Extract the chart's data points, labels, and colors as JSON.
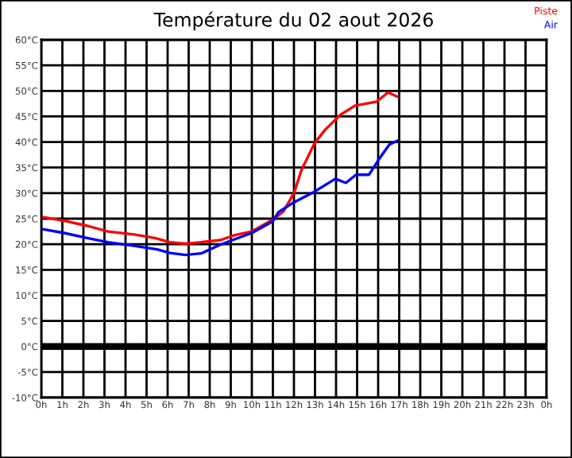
{
  "chart_data": {
    "type": "line",
    "title": "Température du 02 aout 2026",
    "xlim": [
      "2026-08-02T00:00",
      "2026-08-03T00:00"
    ],
    "ylim": [
      -10,
      60
    ],
    "xticks": [
      {
        "value": "2026-08-02T00:00",
        "label": "0h"
      },
      {
        "value": "2026-08-02T01:00",
        "label": "1h"
      },
      {
        "value": "2026-08-02T02:00",
        "label": "2h"
      },
      {
        "value": "2026-08-02T03:00",
        "label": "3h"
      },
      {
        "value": "2026-08-02T04:00",
        "label": "4h"
      },
      {
        "value": "2026-08-02T05:00",
        "label": "5h"
      },
      {
        "value": "2026-08-02T06:00",
        "label": "6h"
      },
      {
        "value": "2026-08-02T07:00",
        "label": "7h"
      },
      {
        "value": "2026-08-02T08:00",
        "label": "8h"
      },
      {
        "value": "2026-08-02T09:00",
        "label": "9h"
      },
      {
        "value": "2026-08-02T10:00",
        "label": "10h"
      },
      {
        "value": "2026-08-02T11:00",
        "label": "11h"
      },
      {
        "value": "2026-08-02T12:00",
        "label": "12h"
      },
      {
        "value": "2026-08-02T13:00",
        "label": "13h"
      },
      {
        "value": "2026-08-02T14:00",
        "label": "14h"
      },
      {
        "value": "2026-08-02T15:00",
        "label": "15h"
      },
      {
        "value": "2026-08-02T16:00",
        "label": "16h"
      },
      {
        "value": "2026-08-02T17:00",
        "label": "17h"
      },
      {
        "value": "2026-08-02T18:00",
        "label": "18h"
      },
      {
        "value": "2026-08-02T19:00",
        "label": "19h"
      },
      {
        "value": "2026-08-02T20:00",
        "label": "20h"
      },
      {
        "value": "2026-08-02T21:00",
        "label": "21h"
      },
      {
        "value": "2026-08-02T22:00",
        "label": "22h"
      },
      {
        "value": "2026-08-02T23:00",
        "label": "23h"
      },
      {
        "value": "2026-08-03T00:00",
        "label": "0h"
      }
    ],
    "yticks": [
      {
        "value": -10,
        "label": "-10°C"
      },
      {
        "value": -5,
        "label": "-5°C"
      },
      {
        "value": 0,
        "label": "0°C"
      },
      {
        "value": 5,
        "label": "5°C"
      },
      {
        "value": 10,
        "label": "10°C"
      },
      {
        "value": 15,
        "label": "15°C"
      },
      {
        "value": 20,
        "label": "20°C"
      },
      {
        "value": 25,
        "label": "25°C"
      },
      {
        "value": 30,
        "label": "30°C"
      },
      {
        "value": 35,
        "label": "35°C"
      },
      {
        "value": 40,
        "label": "40°C"
      },
      {
        "value": 45,
        "label": "45°C"
      },
      {
        "value": 50,
        "label": "50°C"
      },
      {
        "value": 55,
        "label": "55°C"
      },
      {
        "value": 60,
        "label": "60°C"
      }
    ],
    "grid": true,
    "legend": "top right",
    "marker": "none",
    "line_style": "solid",
    "ref_lines": [
      {
        "axis": "y",
        "value": 0,
        "label": null,
        "color": "#000000"
      }
    ],
    "series": [
      {
        "name": "Piste",
        "color": "#ff0000",
        "x": [
          "2026-08-02T00:06",
          "2026-08-02T01:05",
          "2026-08-02T02:11",
          "2026-08-02T03:10",
          "2026-08-02T04:24",
          "2026-08-02T05:24",
          "2026-08-02T06:06",
          "2026-08-02T06:51",
          "2026-08-02T07:36",
          "2026-08-02T08:30",
          "2026-08-02T09:12",
          "2026-08-02T10:00",
          "2026-08-02T11:00",
          "2026-08-02T11:30",
          "2026-08-02T12:00",
          "2026-08-02T12:22",
          "2026-08-02T12:59",
          "2026-08-02T13:29",
          "2026-08-02T14:12",
          "2026-08-02T14:54",
          "2026-08-02T15:56",
          "2026-08-02T16:28",
          "2026-08-02T16:54"
        ],
        "values": [
          25.3,
          24.6,
          23.6,
          22.5,
          21.9,
          21.2,
          20.4,
          20.1,
          20.4,
          20.8,
          21.8,
          22.5,
          24.8,
          26.4,
          30,
          34.6,
          39.8,
          42.4,
          45.3,
          47.1,
          47.9,
          49.7,
          48.9
        ]
      },
      {
        "name": "Air",
        "color": "#0000ff",
        "x": [
          "2026-08-02T00:06",
          "2026-08-02T01:05",
          "2026-08-02T02:11",
          "2026-08-02T03:10",
          "2026-08-02T04:24",
          "2026-08-02T05:30",
          "2026-08-02T06:06",
          "2026-08-02T06:51",
          "2026-08-02T07:36",
          "2026-08-02T08:30",
          "2026-08-02T09:12",
          "2026-08-02T10:00",
          "2026-08-02T11:00",
          "2026-08-02T11:16",
          "2026-08-02T12:00",
          "2026-08-02T12:59",
          "2026-08-02T13:58",
          "2026-08-02T14:28",
          "2026-08-02T14:57",
          "2026-08-02T15:34",
          "2026-08-02T16:03",
          "2026-08-02T16:32",
          "2026-08-02T16:54"
        ],
        "values": [
          22.9,
          22.2,
          21.2,
          20.4,
          19.7,
          19.0,
          18.3,
          17.9,
          18.2,
          19.9,
          21.0,
          22.2,
          24.5,
          26.3,
          28.2,
          30.3,
          32.8,
          32.0,
          33.6,
          33.6,
          36.7,
          39.5,
          40.2
        ]
      }
    ]
  }
}
